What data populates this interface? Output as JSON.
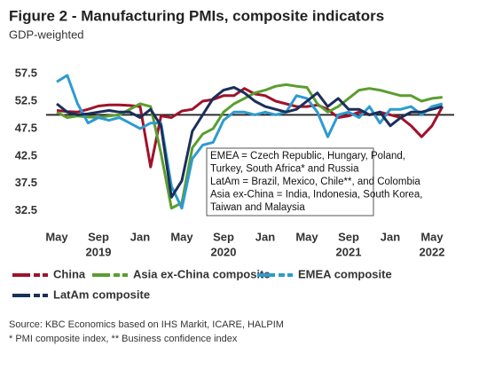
{
  "chart_data": {
    "type": "line",
    "title": "Figure 2 - Manufacturing PMIs, composite indicators",
    "subtitle": "GDP-weighted",
    "categories": [
      "May",
      null,
      null,
      null,
      "Sep",
      null,
      null,
      null,
      "Jan",
      null,
      null,
      null,
      "May",
      null,
      null,
      null,
      "Sep",
      null,
      null,
      null,
      "Jan",
      null,
      null,
      null,
      "May",
      null,
      null,
      null,
      "Sep",
      null,
      null,
      null,
      "Jan",
      null,
      null,
      null,
      "May",
      null
    ],
    "years": [
      null,
      null,
      null,
      null,
      "2019",
      null,
      null,
      null,
      null,
      null,
      null,
      null,
      null,
      null,
      null,
      null,
      "2020",
      null,
      null,
      null,
      null,
      null,
      null,
      null,
      null,
      null,
      null,
      null,
      "2021",
      null,
      null,
      null,
      null,
      null,
      null,
      null,
      "2022",
      null
    ],
    "series": [
      {
        "name": "China",
        "color": "#a0122a",
        "values": [
          50.8,
          50.6,
          50.5,
          51.0,
          51.6,
          51.8,
          51.8,
          51.7,
          51.5,
          40.5,
          49.8,
          49.5,
          50.7,
          51.0,
          52.5,
          52.8,
          53.5,
          53.5,
          54.8,
          53.8,
          53.5,
          52.5,
          52.0,
          51.5,
          51.5,
          51.8,
          51.0,
          49.5,
          49.8,
          50.5,
          50.0,
          50.5,
          50.0,
          49.5,
          48.0,
          46.0,
          48.0,
          51.5
        ]
      },
      {
        "name": "Asia ex-China composite",
        "color": "#5a9e2f",
        "values": [
          50.5,
          49.5,
          49.8,
          49.6,
          49.5,
          49.8,
          50.0,
          51.0,
          52.0,
          51.5,
          43.0,
          33.0,
          34.0,
          44.0,
          46.5,
          47.5,
          50.5,
          52.0,
          53.0,
          54.0,
          54.5,
          55.2,
          55.5,
          55.2,
          55.0,
          52.0,
          50.5,
          51.5,
          53.0,
          54.5,
          54.8,
          54.5,
          54.0,
          53.5,
          53.5,
          52.5,
          53.0,
          53.2
        ]
      },
      {
        "name": "EMEA composite",
        "color": "#2e9bd0",
        "values": [
          56.0,
          57.2,
          52.0,
          48.5,
          49.5,
          49.0,
          49.5,
          48.5,
          47.5,
          48.5,
          48.5,
          37.0,
          33.0,
          42.0,
          44.5,
          45.0,
          49.0,
          50.5,
          50.5,
          50.0,
          50.5,
          50.0,
          50.5,
          53.5,
          53.0,
          50.5,
          46.0,
          50.0,
          50.5,
          49.5,
          51.5,
          48.5,
          51.0,
          51.0,
          51.5,
          50.0,
          51.5,
          52.0
        ]
      },
      {
        "name": "LatAm composite",
        "color": "#1a2f5a",
        "values": [
          52.0,
          50.5,
          50.0,
          50.2,
          50.5,
          50.8,
          50.5,
          50.5,
          49.5,
          51.0,
          48.0,
          35.0,
          38.0,
          47.0,
          50.0,
          53.0,
          54.5,
          55.0,
          54.0,
          52.5,
          51.5,
          51.0,
          50.5,
          51.0,
          52.5,
          54.0,
          51.5,
          53.0,
          51.0,
          51.0,
          50.0,
          50.5,
          48.0,
          49.5,
          50.5,
          50.5,
          51.0,
          51.5
        ]
      }
    ],
    "ylim": [
      30.2,
      59.6
    ],
    "yticks": [
      32.5,
      37.5,
      42.5,
      47.5,
      52.5,
      57.5
    ],
    "reference_line": 50,
    "grid": false,
    "annotation": [
      "EMEA = Czech Republic, Hungary, Poland,",
      "Turkey, South Africa* and Russia",
      "LatAm = Brazil, Mexico, Chile**, and Colombia",
      "Asia ex-China = India, Indonesia, South Korea,",
      "Taiwan and Malaysia"
    ],
    "notes": [
      "Source: KBC Economics based on IHS Markit, ICARE, HALPIM",
      "* PMI composite index, ** Business confidence index"
    ]
  }
}
